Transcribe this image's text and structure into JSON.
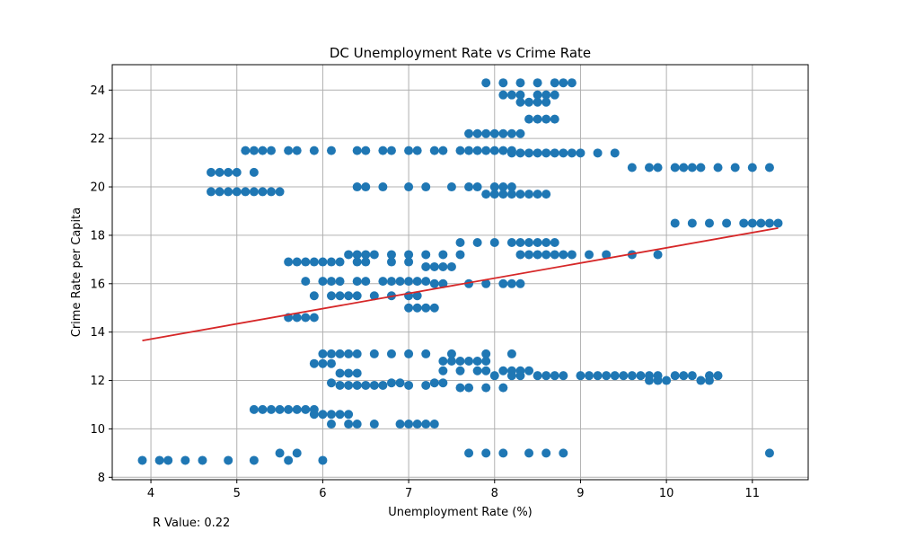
{
  "chart_data": {
    "type": "scatter",
    "title": "DC Unemployment Rate vs Crime Rate",
    "xlabel": "Unemployment Rate (%)",
    "ylabel": "Crime Rate per Capita",
    "xlim": [
      3.55,
      11.65
    ],
    "ylim": [
      7.9,
      25.05
    ],
    "xticks": [
      4,
      5,
      6,
      7,
      8,
      9,
      10,
      11
    ],
    "yticks": [
      8,
      10,
      12,
      14,
      16,
      18,
      20,
      22,
      24
    ],
    "grid": true,
    "colors": {
      "points": "#1f77b4",
      "regression": "#d62728"
    },
    "regression": {
      "x": [
        3.9,
        11.3
      ],
      "y": [
        13.65,
        18.3
      ]
    },
    "annotation": "R Value: 0.22",
    "points": [
      [
        3.9,
        8.7
      ],
      [
        4.1,
        8.7
      ],
      [
        4.2,
        8.7
      ],
      [
        4.4,
        8.7
      ],
      [
        4.6,
        8.7
      ],
      [
        4.9,
        8.7
      ],
      [
        5.2,
        8.7
      ],
      [
        5.5,
        9.0
      ],
      [
        5.6,
        8.7
      ],
      [
        5.7,
        9.0
      ],
      [
        6.0,
        8.7
      ],
      [
        7.7,
        9.0
      ],
      [
        7.9,
        9.0
      ],
      [
        8.1,
        9.0
      ],
      [
        8.4,
        9.0
      ],
      [
        8.6,
        9.0
      ],
      [
        8.8,
        9.0
      ],
      [
        11.2,
        9.0
      ],
      [
        6.1,
        10.2
      ],
      [
        6.3,
        10.2
      ],
      [
        6.4,
        10.2
      ],
      [
        6.6,
        10.2
      ],
      [
        6.9,
        10.2
      ],
      [
        7.0,
        10.2
      ],
      [
        7.1,
        10.2
      ],
      [
        7.2,
        10.2
      ],
      [
        7.3,
        10.2
      ],
      [
        5.2,
        10.8
      ],
      [
        5.3,
        10.8
      ],
      [
        5.4,
        10.8
      ],
      [
        5.5,
        10.8
      ],
      [
        5.6,
        10.8
      ],
      [
        5.7,
        10.8
      ],
      [
        5.8,
        10.8
      ],
      [
        5.9,
        10.8
      ],
      [
        5.9,
        10.6
      ],
      [
        6.0,
        10.6
      ],
      [
        6.1,
        10.6
      ],
      [
        6.2,
        10.6
      ],
      [
        6.3,
        10.6
      ],
      [
        6.1,
        11.9
      ],
      [
        6.2,
        11.8
      ],
      [
        6.3,
        11.8
      ],
      [
        6.4,
        11.8
      ],
      [
        6.5,
        11.8
      ],
      [
        6.6,
        11.8
      ],
      [
        6.7,
        11.8
      ],
      [
        6.8,
        11.9
      ],
      [
        6.9,
        11.9
      ],
      [
        7.0,
        11.8
      ],
      [
        7.2,
        11.8
      ],
      [
        7.3,
        11.9
      ],
      [
        7.4,
        11.9
      ],
      [
        7.6,
        11.7
      ],
      [
        7.7,
        11.7
      ],
      [
        7.9,
        11.7
      ],
      [
        8.1,
        11.7
      ],
      [
        6.2,
        12.3
      ],
      [
        6.3,
        12.3
      ],
      [
        6.4,
        12.3
      ],
      [
        5.9,
        12.7
      ],
      [
        6.0,
        12.7
      ],
      [
        6.1,
        12.7
      ],
      [
        6.0,
        13.1
      ],
      [
        6.1,
        13.1
      ],
      [
        6.2,
        13.1
      ],
      [
        6.3,
        13.1
      ],
      [
        6.4,
        13.1
      ],
      [
        6.6,
        13.1
      ],
      [
        6.8,
        13.1
      ],
      [
        7.0,
        13.1
      ],
      [
        7.2,
        13.1
      ],
      [
        7.5,
        13.1
      ],
      [
        7.9,
        13.1
      ],
      [
        8.2,
        13.1
      ],
      [
        7.4,
        12.8
      ],
      [
        7.5,
        12.8
      ],
      [
        7.6,
        12.8
      ],
      [
        7.7,
        12.8
      ],
      [
        7.8,
        12.8
      ],
      [
        7.9,
        12.8
      ],
      [
        7.4,
        12.4
      ],
      [
        7.6,
        12.4
      ],
      [
        7.8,
        12.4
      ],
      [
        7.9,
        12.4
      ],
      [
        8.0,
        12.2
      ],
      [
        8.1,
        12.4
      ],
      [
        8.2,
        12.4
      ],
      [
        8.3,
        12.4
      ],
      [
        8.4,
        12.4
      ],
      [
        8.2,
        12.2
      ],
      [
        8.3,
        12.2
      ],
      [
        8.5,
        12.2
      ],
      [
        8.6,
        12.2
      ],
      [
        8.7,
        12.2
      ],
      [
        8.8,
        12.2
      ],
      [
        9.0,
        12.2
      ],
      [
        9.1,
        12.2
      ],
      [
        9.2,
        12.2
      ],
      [
        9.3,
        12.2
      ],
      [
        9.4,
        12.2
      ],
      [
        9.5,
        12.2
      ],
      [
        9.6,
        12.2
      ],
      [
        9.7,
        12.2
      ],
      [
        9.8,
        12.2
      ],
      [
        9.8,
        12.0
      ],
      [
        9.9,
        12.2
      ],
      [
        9.9,
        12.0
      ],
      [
        10.0,
        12.0
      ],
      [
        10.1,
        12.2
      ],
      [
        10.2,
        12.2
      ],
      [
        10.3,
        12.2
      ],
      [
        10.4,
        12.0
      ],
      [
        10.5,
        12.0
      ],
      [
        10.5,
        12.2
      ],
      [
        10.6,
        12.2
      ],
      [
        5.6,
        14.6
      ],
      [
        5.7,
        14.6
      ],
      [
        5.8,
        14.6
      ],
      [
        5.9,
        14.6
      ],
      [
        7.0,
        15.0
      ],
      [
        7.1,
        15.0
      ],
      [
        7.2,
        15.0
      ],
      [
        7.3,
        15.0
      ],
      [
        5.9,
        15.5
      ],
      [
        6.1,
        15.5
      ],
      [
        6.2,
        15.5
      ],
      [
        6.3,
        15.5
      ],
      [
        6.4,
        15.5
      ],
      [
        6.6,
        15.5
      ],
      [
        6.8,
        15.5
      ],
      [
        7.0,
        15.5
      ],
      [
        7.1,
        15.5
      ],
      [
        5.8,
        16.1
      ],
      [
        6.0,
        16.1
      ],
      [
        6.1,
        16.1
      ],
      [
        6.2,
        16.1
      ],
      [
        6.4,
        16.1
      ],
      [
        6.5,
        16.1
      ],
      [
        6.7,
        16.1
      ],
      [
        6.8,
        16.1
      ],
      [
        6.9,
        16.1
      ],
      [
        7.0,
        16.1
      ],
      [
        7.1,
        16.1
      ],
      [
        7.2,
        16.1
      ],
      [
        7.3,
        16.0
      ],
      [
        7.4,
        16.0
      ],
      [
        7.7,
        16.0
      ],
      [
        7.9,
        16.0
      ],
      [
        8.1,
        16.0
      ],
      [
        8.2,
        16.0
      ],
      [
        8.3,
        16.0
      ],
      [
        5.6,
        16.9
      ],
      [
        5.7,
        16.9
      ],
      [
        5.8,
        16.9
      ],
      [
        5.9,
        16.9
      ],
      [
        6.0,
        16.9
      ],
      [
        6.1,
        16.9
      ],
      [
        6.2,
        16.9
      ],
      [
        6.4,
        16.9
      ],
      [
        6.5,
        16.9
      ],
      [
        6.8,
        16.9
      ],
      [
        7.0,
        16.9
      ],
      [
        7.2,
        16.7
      ],
      [
        7.3,
        16.7
      ],
      [
        7.4,
        16.7
      ],
      [
        7.5,
        16.7
      ],
      [
        6.3,
        17.2
      ],
      [
        6.4,
        17.2
      ],
      [
        6.5,
        17.2
      ],
      [
        6.6,
        17.2
      ],
      [
        6.8,
        17.2
      ],
      [
        7.0,
        17.2
      ],
      [
        7.2,
        17.2
      ],
      [
        7.4,
        17.2
      ],
      [
        7.6,
        17.2
      ],
      [
        7.6,
        17.7
      ],
      [
        7.8,
        17.7
      ],
      [
        8.0,
        17.7
      ],
      [
        8.2,
        17.7
      ],
      [
        8.3,
        17.7
      ],
      [
        8.4,
        17.7
      ],
      [
        8.5,
        17.7
      ],
      [
        8.6,
        17.7
      ],
      [
        8.7,
        17.7
      ],
      [
        8.3,
        17.2
      ],
      [
        8.4,
        17.2
      ],
      [
        8.5,
        17.2
      ],
      [
        8.6,
        17.2
      ],
      [
        8.7,
        17.2
      ],
      [
        8.8,
        17.2
      ],
      [
        8.9,
        17.2
      ],
      [
        9.1,
        17.2
      ],
      [
        9.3,
        17.2
      ],
      [
        9.6,
        17.2
      ],
      [
        9.9,
        17.2
      ],
      [
        10.1,
        18.5
      ],
      [
        10.3,
        18.5
      ],
      [
        10.5,
        18.5
      ],
      [
        10.7,
        18.5
      ],
      [
        10.9,
        18.5
      ],
      [
        11.0,
        18.5
      ],
      [
        11.1,
        18.5
      ],
      [
        11.2,
        18.5
      ],
      [
        11.3,
        18.5
      ],
      [
        4.7,
        19.8
      ],
      [
        4.8,
        19.8
      ],
      [
        4.9,
        19.8
      ],
      [
        5.0,
        19.8
      ],
      [
        5.1,
        19.8
      ],
      [
        5.2,
        19.8
      ],
      [
        5.3,
        19.8
      ],
      [
        5.4,
        19.8
      ],
      [
        5.5,
        19.8
      ],
      [
        6.4,
        20.0
      ],
      [
        6.5,
        20.0
      ],
      [
        6.7,
        20.0
      ],
      [
        7.0,
        20.0
      ],
      [
        7.2,
        20.0
      ],
      [
        7.5,
        20.0
      ],
      [
        7.7,
        20.0
      ],
      [
        7.8,
        20.0
      ],
      [
        7.9,
        19.7
      ],
      [
        8.0,
        20.0
      ],
      [
        8.0,
        19.7
      ],
      [
        8.1,
        20.0
      ],
      [
        8.1,
        19.7
      ],
      [
        8.2,
        20.0
      ],
      [
        8.2,
        19.7
      ],
      [
        8.3,
        19.7
      ],
      [
        8.4,
        19.7
      ],
      [
        8.5,
        19.7
      ],
      [
        8.6,
        19.7
      ],
      [
        4.7,
        20.6
      ],
      [
        4.8,
        20.6
      ],
      [
        4.9,
        20.6
      ],
      [
        5.0,
        20.6
      ],
      [
        5.2,
        20.6
      ],
      [
        9.6,
        20.8
      ],
      [
        9.8,
        20.8
      ],
      [
        9.9,
        20.8
      ],
      [
        10.1,
        20.8
      ],
      [
        10.2,
        20.8
      ],
      [
        10.3,
        20.8
      ],
      [
        10.4,
        20.8
      ],
      [
        10.6,
        20.8
      ],
      [
        10.8,
        20.8
      ],
      [
        11.0,
        20.8
      ],
      [
        11.2,
        20.8
      ],
      [
        5.1,
        21.5
      ],
      [
        5.2,
        21.5
      ],
      [
        5.3,
        21.5
      ],
      [
        5.4,
        21.5
      ],
      [
        5.6,
        21.5
      ],
      [
        5.7,
        21.5
      ],
      [
        5.9,
        21.5
      ],
      [
        6.1,
        21.5
      ],
      [
        6.4,
        21.5
      ],
      [
        6.5,
        21.5
      ],
      [
        6.7,
        21.5
      ],
      [
        6.8,
        21.5
      ],
      [
        7.0,
        21.5
      ],
      [
        7.1,
        21.5
      ],
      [
        7.3,
        21.5
      ],
      [
        7.4,
        21.5
      ],
      [
        7.6,
        21.5
      ],
      [
        7.7,
        21.5
      ],
      [
        7.8,
        21.5
      ],
      [
        7.9,
        21.5
      ],
      [
        8.0,
        21.5
      ],
      [
        8.1,
        21.5
      ],
      [
        8.2,
        21.5
      ],
      [
        8.2,
        21.4
      ],
      [
        8.3,
        21.4
      ],
      [
        8.4,
        21.4
      ],
      [
        8.5,
        21.4
      ],
      [
        8.6,
        21.4
      ],
      [
        8.7,
        21.4
      ],
      [
        8.8,
        21.4
      ],
      [
        8.9,
        21.4
      ],
      [
        9.0,
        21.4
      ],
      [
        9.2,
        21.4
      ],
      [
        9.4,
        21.4
      ],
      [
        7.7,
        22.2
      ],
      [
        7.8,
        22.2
      ],
      [
        7.9,
        22.2
      ],
      [
        8.0,
        22.2
      ],
      [
        8.1,
        22.2
      ],
      [
        8.2,
        22.2
      ],
      [
        8.3,
        22.2
      ],
      [
        8.4,
        22.8
      ],
      [
        8.5,
        22.8
      ],
      [
        8.6,
        22.8
      ],
      [
        8.7,
        22.8
      ],
      [
        8.1,
        23.8
      ],
      [
        8.2,
        23.8
      ],
      [
        8.3,
        23.8
      ],
      [
        8.3,
        23.5
      ],
      [
        8.4,
        23.5
      ],
      [
        8.5,
        23.8
      ],
      [
        8.5,
        23.5
      ],
      [
        8.6,
        23.8
      ],
      [
        8.6,
        23.5
      ],
      [
        8.7,
        23.8
      ],
      [
        7.9,
        24.3
      ],
      [
        8.1,
        24.3
      ],
      [
        8.3,
        24.3
      ],
      [
        8.5,
        24.3
      ],
      [
        8.7,
        24.3
      ],
      [
        8.8,
        24.3
      ],
      [
        8.9,
        24.3
      ]
    ]
  }
}
